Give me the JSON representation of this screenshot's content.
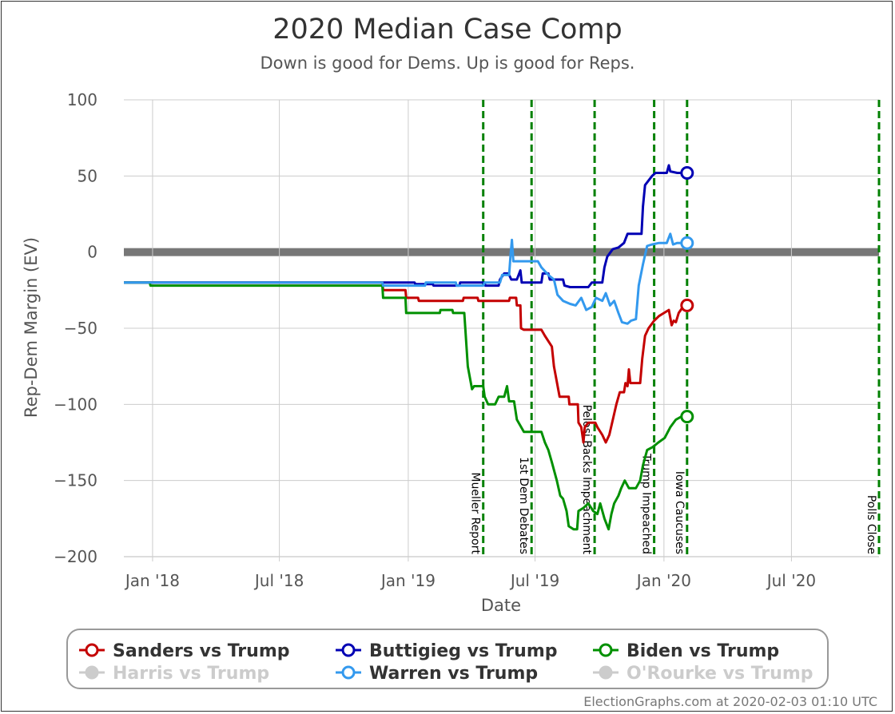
{
  "chart_data": {
    "type": "line",
    "title": "2020 Median Case Comp",
    "subtitle": "Down is good for Dems. Up is good for Reps.",
    "xlabel": "Date",
    "ylabel": "Rep-Dem Margin (EV)",
    "ylim": [
      -200,
      100
    ],
    "xlim": [
      "2017-11-21",
      "2020-11-03"
    ],
    "yticks": [
      100,
      50,
      0,
      -50,
      -100,
      -150,
      -200
    ],
    "ytick_labels": [
      "100",
      "50",
      "0",
      "−50",
      "−100",
      "−150",
      "−200"
    ],
    "xticks": [
      {
        "date": "2018-01-01",
        "label": "Jan '18"
      },
      {
        "date": "2018-07-01",
        "label": "Jul '18"
      },
      {
        "date": "2019-01-01",
        "label": "Jan '19"
      },
      {
        "date": "2019-07-01",
        "label": "Jul '19"
      },
      {
        "date": "2020-01-01",
        "label": "Jan '20"
      },
      {
        "date": "2020-07-01",
        "label": "Jul '20"
      }
    ],
    "grid": true,
    "legend_position": "bottom",
    "events": [
      {
        "date": "2019-04-18",
        "label": "Mueller Report"
      },
      {
        "date": "2019-06-26",
        "label": "1st Dem Debates"
      },
      {
        "date": "2019-09-24",
        "label": "Pelosi Backs Impeachment"
      },
      {
        "date": "2019-12-18",
        "label": "Trump Impeached"
      },
      {
        "date": "2020-02-03",
        "label": "Iowa Caucuses"
      },
      {
        "date": "2020-11-03",
        "label": "Polls Close"
      }
    ],
    "series": [
      {
        "name": "Sanders vs Trump",
        "color": "#c40000",
        "active": true,
        "end_marker": true,
        "points": [
          [
            "2017-11-21",
            -20
          ],
          [
            "2018-11-25",
            -20
          ],
          [
            "2018-11-26",
            -25
          ],
          [
            "2018-12-28",
            -25
          ],
          [
            "2018-12-29",
            -30
          ],
          [
            "2019-01-15",
            -30
          ],
          [
            "2019-01-16",
            -32
          ],
          [
            "2019-03-20",
            -32
          ],
          [
            "2019-03-21",
            -30
          ],
          [
            "2019-04-10",
            -30
          ],
          [
            "2019-04-11",
            -32
          ],
          [
            "2019-05-25",
            -32
          ],
          [
            "2019-05-26",
            -30
          ],
          [
            "2019-06-04",
            -30
          ],
          [
            "2019-06-05",
            -35
          ],
          [
            "2019-06-10",
            -35
          ],
          [
            "2019-06-11",
            -50
          ],
          [
            "2019-06-15",
            -51
          ],
          [
            "2019-07-10",
            -51
          ],
          [
            "2019-07-15",
            -55
          ],
          [
            "2019-07-25",
            -62
          ],
          [
            "2019-07-28",
            -75
          ],
          [
            "2019-08-05",
            -95
          ],
          [
            "2019-08-18",
            -95
          ],
          [
            "2019-08-19",
            -100
          ],
          [
            "2019-08-31",
            -100
          ],
          [
            "2019-09-01",
            -112
          ],
          [
            "2019-09-05",
            -115
          ],
          [
            "2019-09-08",
            -125
          ],
          [
            "2019-09-10",
            -115
          ],
          [
            "2019-09-15",
            -112
          ],
          [
            "2019-09-25",
            -112
          ],
          [
            "2019-09-28",
            -115
          ],
          [
            "2019-10-05",
            -120
          ],
          [
            "2019-10-10",
            -125
          ],
          [
            "2019-10-15",
            -120
          ],
          [
            "2019-10-20",
            -110
          ],
          [
            "2019-10-25",
            -100
          ],
          [
            "2019-10-30",
            -92
          ],
          [
            "2019-11-05",
            -92
          ],
          [
            "2019-11-07",
            -86
          ],
          [
            "2019-11-10",
            -88
          ],
          [
            "2019-11-12",
            -77
          ],
          [
            "2019-11-14",
            -86
          ],
          [
            "2019-11-28",
            -86
          ],
          [
            "2019-12-01",
            -70
          ],
          [
            "2019-12-05",
            -55
          ],
          [
            "2019-12-10",
            -50
          ],
          [
            "2019-12-18",
            -45
          ],
          [
            "2019-12-25",
            -42
          ],
          [
            "2020-01-01",
            -40
          ],
          [
            "2020-01-08",
            -38
          ],
          [
            "2020-01-12",
            -48
          ],
          [
            "2020-01-15",
            -45
          ],
          [
            "2020-01-18",
            -46
          ],
          [
            "2020-01-22",
            -40
          ],
          [
            "2020-01-28",
            -36
          ],
          [
            "2020-02-03",
            -35
          ]
        ]
      },
      {
        "name": "Buttigieg vs Trump",
        "color": "#0000b4",
        "active": true,
        "end_marker": true,
        "points": [
          [
            "2017-11-21",
            -20
          ],
          [
            "2019-01-10",
            -20
          ],
          [
            "2019-01-11",
            -21
          ],
          [
            "2019-02-05",
            -21
          ],
          [
            "2019-02-06",
            -22
          ],
          [
            "2019-03-15",
            -22
          ],
          [
            "2019-03-16",
            -20
          ],
          [
            "2019-04-20",
            -20
          ],
          [
            "2019-04-21",
            -22
          ],
          [
            "2019-05-10",
            -22
          ],
          [
            "2019-05-12",
            -18
          ],
          [
            "2019-05-18",
            -14
          ],
          [
            "2019-05-24",
            -14
          ],
          [
            "2019-05-28",
            -18
          ],
          [
            "2019-06-05",
            -18
          ],
          [
            "2019-06-10",
            -12
          ],
          [
            "2019-06-12",
            -20
          ],
          [
            "2019-07-10",
            -20
          ],
          [
            "2019-07-12",
            -14
          ],
          [
            "2019-07-20",
            -14
          ],
          [
            "2019-07-22",
            -18
          ],
          [
            "2019-08-10",
            -18
          ],
          [
            "2019-08-12",
            -22
          ],
          [
            "2019-08-20",
            -23
          ],
          [
            "2019-09-15",
            -23
          ],
          [
            "2019-09-20",
            -20
          ],
          [
            "2019-10-05",
            -20
          ],
          [
            "2019-10-08",
            -10
          ],
          [
            "2019-10-12",
            -3
          ],
          [
            "2019-10-20",
            2
          ],
          [
            "2019-10-28",
            3
          ],
          [
            "2019-11-05",
            6
          ],
          [
            "2019-11-10",
            12
          ],
          [
            "2019-11-30",
            12
          ],
          [
            "2019-12-02",
            30
          ],
          [
            "2019-12-05",
            44
          ],
          [
            "2019-12-10",
            47
          ],
          [
            "2019-12-15",
            50
          ],
          [
            "2019-12-20",
            52
          ],
          [
            "2020-01-05",
            52
          ],
          [
            "2020-01-08",
            57
          ],
          [
            "2020-01-10",
            53
          ],
          [
            "2020-01-20",
            52
          ],
          [
            "2020-02-03",
            52
          ]
        ]
      },
      {
        "name": "Biden vs Trump",
        "color": "#009000",
        "active": true,
        "end_marker": true,
        "points": [
          [
            "2017-11-21",
            -20
          ],
          [
            "2017-12-28",
            -20
          ],
          [
            "2017-12-29",
            -22
          ],
          [
            "2018-11-25",
            -22
          ],
          [
            "2018-11-26",
            -30
          ],
          [
            "2018-12-28",
            -30
          ],
          [
            "2018-12-29",
            -40
          ],
          [
            "2019-02-15",
            -40
          ],
          [
            "2019-02-16",
            -38
          ],
          [
            "2019-03-05",
            -38
          ],
          [
            "2019-03-06",
            -40
          ],
          [
            "2019-03-22",
            -40
          ],
          [
            "2019-03-27",
            -75
          ],
          [
            "2019-04-02",
            -90
          ],
          [
            "2019-04-05",
            -88
          ],
          [
            "2019-04-18",
            -88
          ],
          [
            "2019-04-20",
            -95
          ],
          [
            "2019-04-25",
            -100
          ],
          [
            "2019-05-05",
            -100
          ],
          [
            "2019-05-10",
            -95
          ],
          [
            "2019-05-18",
            -95
          ],
          [
            "2019-05-22",
            -88
          ],
          [
            "2019-05-25",
            -98
          ],
          [
            "2019-06-01",
            -98
          ],
          [
            "2019-06-05",
            -110
          ],
          [
            "2019-06-15",
            -118
          ],
          [
            "2019-07-10",
            -118
          ],
          [
            "2019-07-15",
            -125
          ],
          [
            "2019-07-20",
            -130
          ],
          [
            "2019-07-25",
            -138
          ],
          [
            "2019-08-01",
            -150
          ],
          [
            "2019-08-06",
            -160
          ],
          [
            "2019-08-10",
            -162
          ],
          [
            "2019-08-15",
            -170
          ],
          [
            "2019-08-18",
            -180
          ],
          [
            "2019-08-25",
            -182
          ],
          [
            "2019-08-30",
            -182
          ],
          [
            "2019-09-01",
            -170
          ],
          [
            "2019-09-08",
            -168
          ],
          [
            "2019-09-15",
            -165
          ],
          [
            "2019-09-22",
            -170
          ],
          [
            "2019-09-28",
            -172
          ],
          [
            "2019-10-02",
            -165
          ],
          [
            "2019-10-08",
            -175
          ],
          [
            "2019-10-14",
            -182
          ],
          [
            "2019-10-18",
            -172
          ],
          [
            "2019-10-22",
            -165
          ],
          [
            "2019-10-28",
            -160
          ],
          [
            "2019-11-01",
            -155
          ],
          [
            "2019-11-06",
            -150
          ],
          [
            "2019-11-12",
            -155
          ],
          [
            "2019-11-22",
            -155
          ],
          [
            "2019-11-28",
            -150
          ],
          [
            "2019-12-02",
            -140
          ],
          [
            "2019-12-08",
            -130
          ],
          [
            "2019-12-16",
            -128
          ],
          [
            "2019-12-24",
            -125
          ],
          [
            "2020-01-02",
            -122
          ],
          [
            "2020-01-10",
            -115
          ],
          [
            "2020-01-18",
            -110
          ],
          [
            "2020-01-26",
            -108
          ],
          [
            "2020-02-03",
            -108
          ]
        ]
      },
      {
        "name": "Harris vs Trump",
        "color": "#cccccc",
        "active": false,
        "end_marker": false,
        "points": []
      },
      {
        "name": "Warren vs Trump",
        "color": "#3399ee",
        "active": true,
        "end_marker": true,
        "points": [
          [
            "2017-11-21",
            -20
          ],
          [
            "2018-11-25",
            -20
          ],
          [
            "2018-11-26",
            -22
          ],
          [
            "2019-01-25",
            -22
          ],
          [
            "2019-01-26",
            -20
          ],
          [
            "2019-03-10",
            -20
          ],
          [
            "2019-03-11",
            -22
          ],
          [
            "2019-04-18",
            -22
          ],
          [
            "2019-04-20",
            -20
          ],
          [
            "2019-05-12",
            -20
          ],
          [
            "2019-05-15",
            -15
          ],
          [
            "2019-05-25",
            -15
          ],
          [
            "2019-05-27",
            -2
          ],
          [
            "2019-05-29",
            8
          ],
          [
            "2019-05-31",
            -6
          ],
          [
            "2019-06-08",
            -6
          ],
          [
            "2019-06-20",
            -6
          ],
          [
            "2019-07-05",
            -6
          ],
          [
            "2019-07-10",
            -10
          ],
          [
            "2019-07-20",
            -15
          ],
          [
            "2019-07-28",
            -18
          ],
          [
            "2019-08-02",
            -28
          ],
          [
            "2019-08-10",
            -32
          ],
          [
            "2019-08-20",
            -34
          ],
          [
            "2019-08-28",
            -35
          ],
          [
            "2019-09-05",
            -30
          ],
          [
            "2019-09-12",
            -38
          ],
          [
            "2019-09-20",
            -36
          ],
          [
            "2019-09-26",
            -30
          ],
          [
            "2019-10-05",
            -32
          ],
          [
            "2019-10-10",
            -27
          ],
          [
            "2019-10-16",
            -35
          ],
          [
            "2019-10-22",
            -32
          ],
          [
            "2019-10-28",
            -40
          ],
          [
            "2019-11-02",
            -46
          ],
          [
            "2019-11-10",
            -47
          ],
          [
            "2019-11-15",
            -45
          ],
          [
            "2019-11-22",
            -44
          ],
          [
            "2019-11-26",
            -22
          ],
          [
            "2019-12-02",
            -8
          ],
          [
            "2019-12-08",
            4
          ],
          [
            "2019-12-15",
            5
          ],
          [
            "2019-12-25",
            6
          ],
          [
            "2020-01-05",
            6
          ],
          [
            "2020-01-10",
            12
          ],
          [
            "2020-01-14",
            5
          ],
          [
            "2020-01-20",
            6
          ],
          [
            "2020-02-03",
            6
          ]
        ]
      },
      {
        "name": "O'Rourke vs Trump",
        "color": "#cccccc",
        "active": false,
        "end_marker": false,
        "points": []
      }
    ]
  },
  "footer": {
    "credit": "ElectionGraphs.com at 2020-02-03 01:10 UTC"
  }
}
